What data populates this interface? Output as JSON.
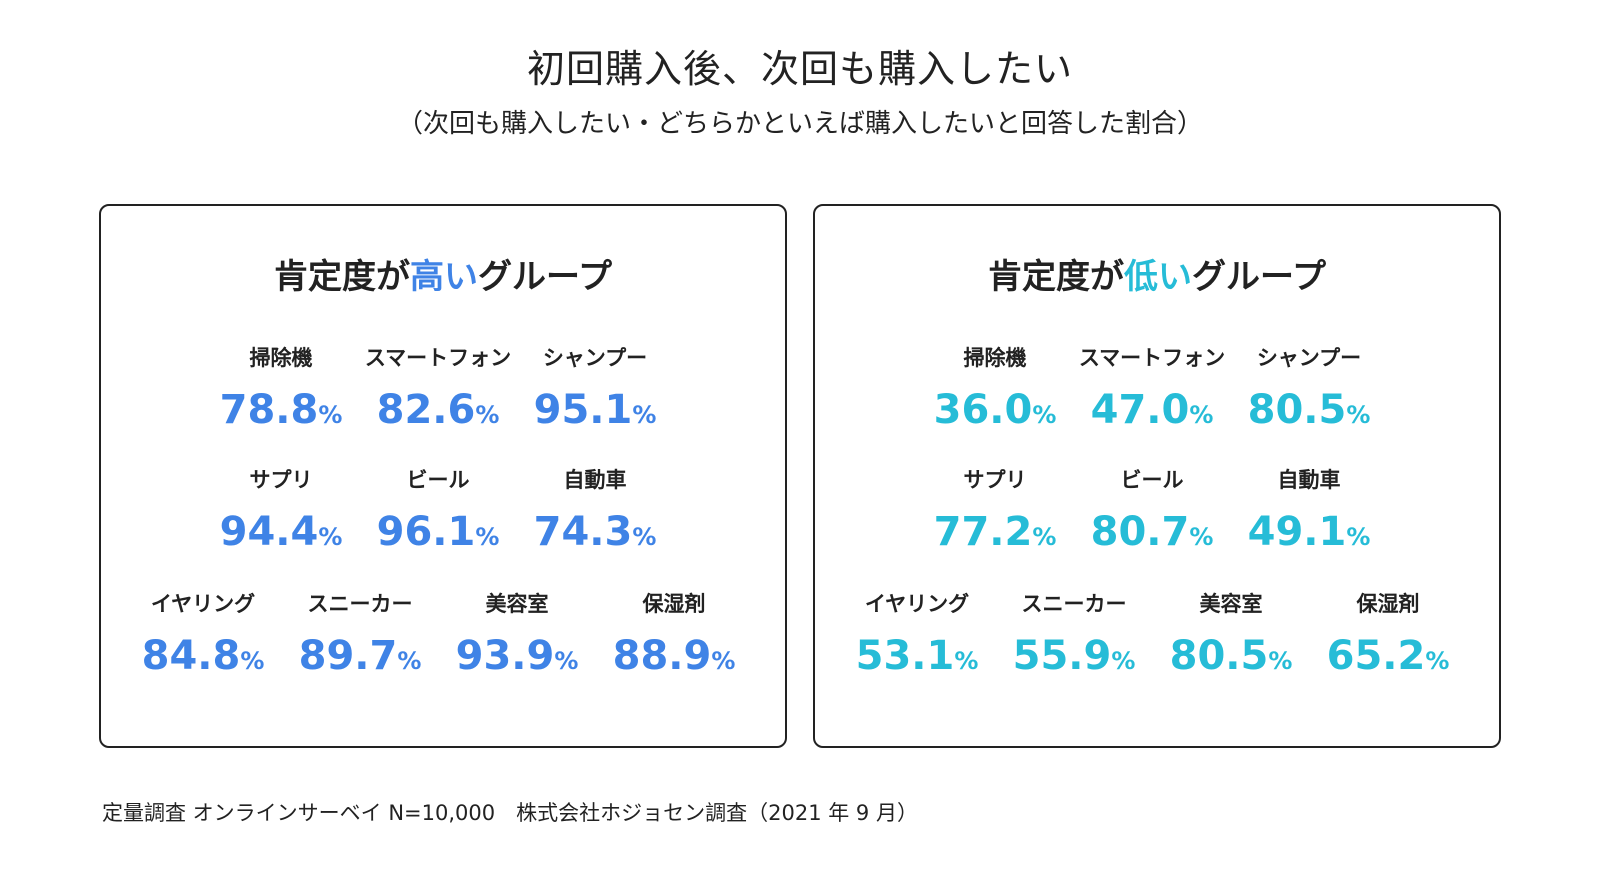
{
  "title": "初回購入後、次回も購入したい",
  "subtitle": "（次回も購入したい・どちらかといえば購入したいと回答した割合）",
  "footer": "定量調査 オンラインサーベイ N=10,000　株式会社ホジョセン調査（2021 年 9 月）",
  "colors": {
    "high": "#3f83e6",
    "low": "#26bcd7"
  },
  "chart_data": [
    {
      "type": "table",
      "title_prefix": "肯定度が",
      "title_highlight": "高い",
      "title_suffix": "グループ",
      "unit": "%",
      "categories": [
        "掃除機",
        "スマートフォン",
        "シャンプー",
        "サプリ",
        "ビール",
        "自動車",
        "イヤリング",
        "スニーカー",
        "美容室",
        "保湿剤"
      ],
      "values": [
        78.8,
        82.6,
        95.1,
        94.4,
        96.1,
        74.3,
        84.8,
        89.7,
        93.9,
        88.9
      ]
    },
    {
      "type": "table",
      "title_prefix": "肯定度が",
      "title_highlight": "低い",
      "title_suffix": "グループ",
      "unit": "%",
      "categories": [
        "掃除機",
        "スマートフォン",
        "シャンプー",
        "サプリ",
        "ビール",
        "自動車",
        "イヤリング",
        "スニーカー",
        "美容室",
        "保湿剤"
      ],
      "values": [
        36.0,
        47.0,
        80.5,
        77.2,
        80.7,
        49.1,
        53.1,
        55.9,
        80.5,
        65.2
      ]
    }
  ]
}
